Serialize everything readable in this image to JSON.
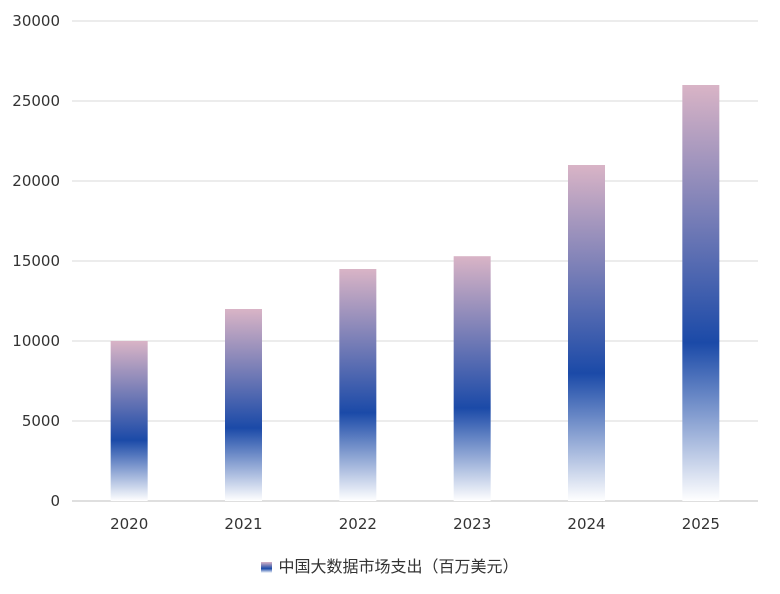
{
  "chart_data": {
    "type": "bar",
    "title": "",
    "xlabel": "",
    "ylabel": "",
    "categories": [
      "2020",
      "2021",
      "2022",
      "2023",
      "2024",
      "2025"
    ],
    "series": [
      {
        "name": "中国大数据市场支出（百万美元）",
        "values": [
          10000,
          12000,
          14500,
          15300,
          21000,
          26000
        ]
      }
    ],
    "ylim": [
      0,
      30000
    ],
    "yticks": [
      0,
      5000,
      10000,
      15000,
      20000,
      25000,
      30000
    ],
    "grid": true,
    "legend_position": "bottom",
    "colors": {
      "bar_top": "#d9b4c6",
      "bar_mid": "#1b4aa8",
      "bar_bottom": "#ffffff",
      "grid": "#d9d9d9",
      "text": "#333333"
    }
  }
}
